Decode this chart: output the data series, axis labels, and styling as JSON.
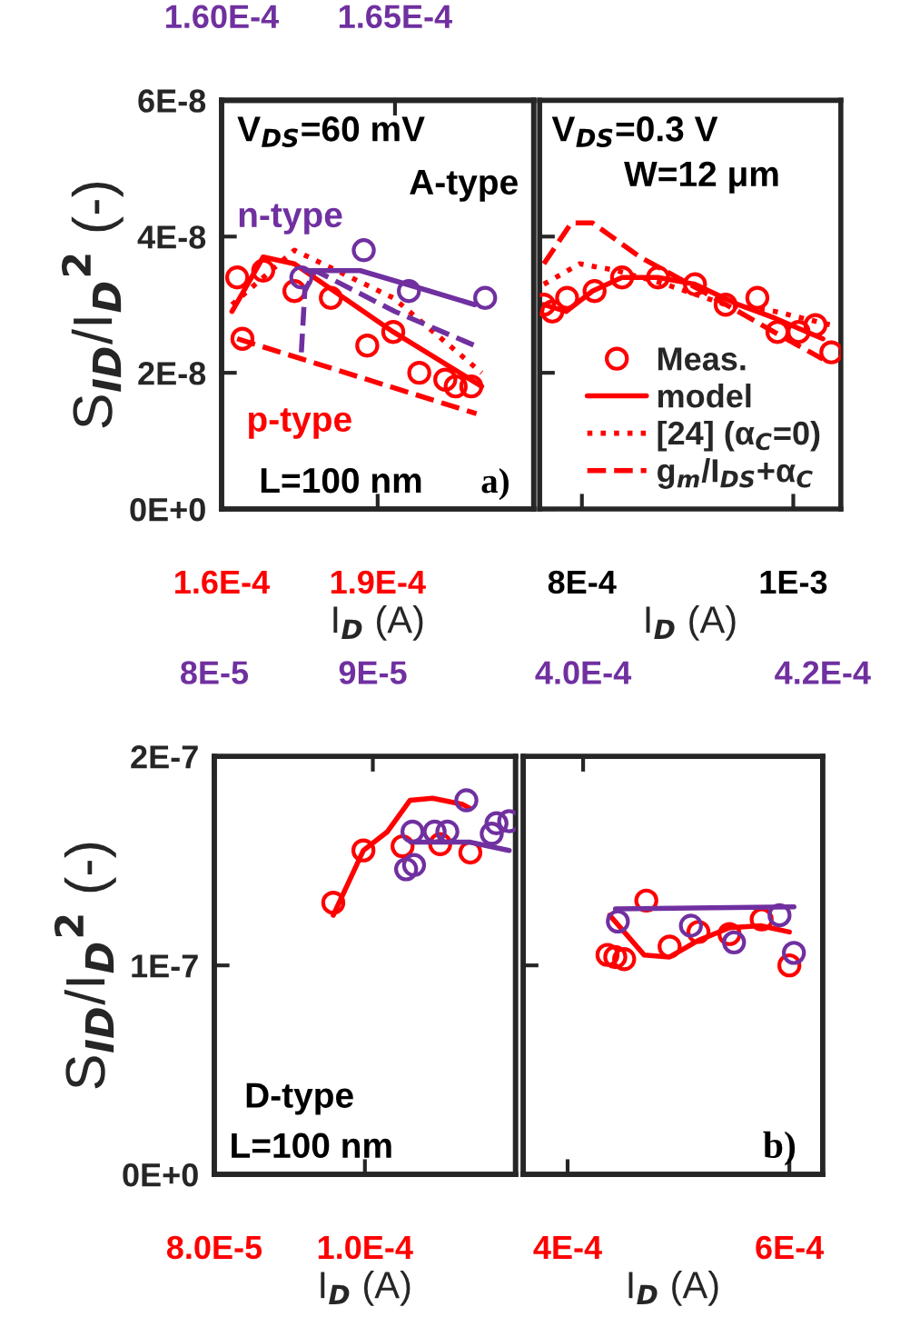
{
  "chart_data": [
    {
      "type": "line",
      "xlabel": "I$_{D}$ (A)",
      "ylabel": "S$_{ID}$/I$_{D}$$^{2}$ (-)",
      "xlim": [
        0.00016,
        0.00022
      ],
      "xticks": [
        {
          "value": 0.00016,
          "label": "1.6E-4"
        },
        {
          "value": 0.00019,
          "label": "1.9E-4"
        }
      ],
      "x2lim": [
        0.00016,
        0.000169
      ],
      "x2ticks": [
        {
          "value": 0.00016,
          "label": "1.60E-4"
        },
        {
          "value": 0.000165,
          "label": "1.65E-4"
        }
      ],
      "ylim": [
        0,
        6e-08
      ],
      "yticks": [
        {
          "value": 0,
          "label": "0E+0"
        },
        {
          "value": 2e-08,
          "label": "2E-8"
        },
        {
          "value": 4e-08,
          "label": "4E-8"
        },
        {
          "value": 6e-08,
          "label": "6E-8"
        }
      ],
      "annotations": [
        "V$_{DS}$=60 mV",
        "A-type",
        "n-type",
        "p-type",
        "L=100 nm",
        "a)"
      ],
      "series": [
        {
          "type": "line",
          "line_style": "solid",
          "color": "#ff0000",
          "x": [
            0.000162,
            0.000168,
            0.000174,
            0.000193,
            0.00021
          ],
          "values": [
            2.9e-08,
            3.7e-08,
            3.6e-08,
            2.6e-08,
            1.8e-08
          ]
        },
        {
          "type": "line",
          "line_style": "dotted",
          "color": "#ff0000",
          "x": [
            0.000162,
            0.000174,
            0.000193,
            0.00021
          ],
          "values": [
            3e-08,
            3.8e-08,
            3.1e-08,
            2e-08
          ]
        },
        {
          "type": "line",
          "line_style": "dashed",
          "color": "#ff0000",
          "x": [
            0.000163,
            0.000209
          ],
          "values": [
            2.5e-08,
            1.4e-08
          ]
        },
        {
          "type": "scatter",
          "marker": "circle",
          "color": "#ff0000",
          "x": [
            0.000163,
            0.000164,
            0.000168,
            0.000174,
            0.000181,
            0.000188,
            0.000193,
            0.000198,
            0.000203,
            0.000205,
            0.000208
          ],
          "values": [
            3.4e-08,
            2.5e-08,
            3.5e-08,
            3.2e-08,
            3.1e-08,
            2.4e-08,
            2.6e-08,
            2e-08,
            1.9e-08,
            1.8e-08,
            1.8e-08
          ]
        },
        {
          "type": "line",
          "line_style": "solid",
          "axis": "x2",
          "color": "#7030a0",
          "x": [
            0.0001624,
            0.000164,
            0.000166,
            0.0001673
          ],
          "values": [
            3.5e-08,
            3.5e-08,
            3.2e-08,
            3e-08
          ]
        },
        {
          "type": "line",
          "line_style": "dashed",
          "axis": "x2",
          "color": "#7030a0",
          "x": [
            0.0001623,
            0.0001624,
            0.0001627,
            0.000165,
            0.0001673
          ],
          "values": [
            2.3e-08,
            3.2e-08,
            3.5e-08,
            2.9e-08,
            2.4e-08
          ]
        },
        {
          "type": "scatter",
          "marker": "circle",
          "axis": "x2",
          "color": "#7030a0",
          "x": [
            0.0001623,
            0.0001641,
            0.0001654,
            0.0001676
          ],
          "values": [
            3.4e-08,
            3.8e-08,
            3.2e-08,
            3.1e-08
          ]
        }
      ]
    },
    {
      "type": "line",
      "xlabel": "I$_{D}$ (A)",
      "tick_labels": "x",
      "legend": "bottom right",
      "xlim": [
        0.00076,
        0.001045
      ],
      "xticks": [
        {
          "value": 0.0008,
          "label": "8E-4"
        },
        {
          "value": 0.001,
          "label": "1E-3"
        }
      ],
      "ylim": [
        0,
        6e-08
      ],
      "yticks": [
        {
          "value": 0,
          "label": null
        },
        {
          "value": 2e-08,
          "label": null
        },
        {
          "value": 4e-08,
          "label": null
        },
        {
          "value": 6e-08,
          "label": null
        }
      ],
      "annotations": [
        "V$_{DS}$=0.3 V",
        "W=12 μm"
      ],
      "series": [
        {
          "type": "scatter",
          "marker": "circle",
          "name": "Meas.",
          "color": "#ff0000",
          "x": [
            0.000764,
            0.000772,
            0.000786,
            0.000812,
            0.000838,
            0.000872,
            0.000907,
            0.000936,
            0.000966,
            0.000985,
            0.001005,
            0.001021,
            0.001036
          ],
          "values": [
            3e-08,
            2.9e-08,
            3.1e-08,
            3.2e-08,
            3.4e-08,
            3.4e-08,
            3.3e-08,
            3e-08,
            3.1e-08,
            2.6e-08,
            2.6e-08,
            2.7e-08,
            2.3e-08
          ]
        },
        {
          "type": "line",
          "line_style": "solid",
          "name": "model",
          "color": "#ff0000",
          "x": [
            0.000764,
            0.000785,
            0.00081,
            0.000838,
            0.000872,
            0.000907,
            0.000948,
            0.000983,
            0.001028
          ],
          "values": [
            3e-08,
            2.9e-08,
            3.2e-08,
            3.4e-08,
            3.4e-08,
            3.3e-08,
            3e-08,
            2.8e-08,
            2.5e-08
          ]
        },
        {
          "type": "line",
          "line_style": "dotted",
          "name": "[24] (α$_{C}$=0)",
          "color": "#ff0000",
          "x": [
            0.000764,
            0.000798,
            0.000833,
            0.000879,
            0.000936,
            0.000983,
            0.001036
          ],
          "values": [
            3.3e-08,
            3.6e-08,
            3.5e-08,
            3.3e-08,
            3e-08,
            2.9e-08,
            2.7e-08
          ]
        },
        {
          "type": "line",
          "line_style": "dashed",
          "name": "g$_{m}$/I$_{DS}$+α$_{C}$",
          "color": "#ff0000",
          "x": [
            0.000764,
            0.00079,
            0.00081,
            0.000855,
            0.000902,
            0.000948,
            0.000993,
            0.001028
          ],
          "values": [
            3.6e-08,
            4.2e-08,
            4.2e-08,
            3.7e-08,
            3.3e-08,
            2.9e-08,
            2.5e-08,
            2.2e-08
          ]
        }
      ]
    },
    {
      "type": "line",
      "xlabel": "I$_{D}$ (A)",
      "ylabel": "S$_{ID}$/I$_{D}$$^{2}$ (-)",
      "xlim": [
        8e-05,
        0.00012
      ],
      "xticks": [
        {
          "value": 8e-05,
          "label": "8.0E-5"
        },
        {
          "value": 0.0001,
          "label": "1.0E-4"
        }
      ],
      "x2lim": [
        8e-05,
        9.9e-05
      ],
      "x2ticks": [
        {
          "value": 8e-05,
          "label": "8E-5"
        },
        {
          "value": 9e-05,
          "label": "9E-5"
        }
      ],
      "ylim": [
        0,
        2e-07
      ],
      "yticks": [
        {
          "value": 0,
          "label": "0E+0"
        },
        {
          "value": 1e-07,
          "label": "1E-7"
        },
        {
          "value": 2e-07,
          "label": "2E-7"
        }
      ],
      "annotations": [
        "D-type",
        "L=100 nm"
      ],
      "series": [
        {
          "type": "line",
          "line_style": "solid",
          "color": "#ff0000",
          "x": [
            9.58e-05,
            9.98e-05,
            0.000103,
            0.000106,
            0.000109,
            0.000113,
            0.000114
          ],
          "values": [
            1.24e-07,
            1.55e-07,
            1.64e-07,
            1.79e-07,
            1.8e-07,
            1.77e-07,
            1.75e-07
          ]
        },
        {
          "type": "scatter",
          "marker": "circle",
          "color": "#ff0000",
          "x": [
            9.58e-05,
            9.98e-05,
            0.000105,
            0.00011,
            0.000114
          ],
          "values": [
            1.3e-07,
            1.55e-07,
            1.57e-07,
            1.58e-07,
            1.54e-07
          ]
        },
        {
          "type": "line",
          "line_style": "solid",
          "axis": "x2",
          "color": "#7030a0",
          "x": [
            9.24e-05,
            9.61e-05,
            9.86e-05
          ],
          "values": [
            1.59e-07,
            1.59e-07,
            1.55e-07
          ]
        },
        {
          "type": "scatter",
          "marker": "circle",
          "axis": "x2",
          "color": "#7030a0",
          "x": [
            9.21e-05,
            9.26e-05,
            9.25e-05,
            9.39e-05,
            9.47e-05,
            9.59e-05,
            9.75e-05,
            9.78e-05,
            9.86e-05
          ],
          "values": [
            1.46e-07,
            1.48e-07,
            1.64e-07,
            1.64e-07,
            1.64e-07,
            1.79e-07,
            1.63e-07,
            1.68e-07,
            1.69e-07
          ]
        }
      ]
    },
    {
      "type": "line",
      "xlabel": "I$_{D}$ (A)",
      "tick_labels": "x",
      "xlim": [
        0.00036,
        0.00063
      ],
      "xticks": [
        {
          "value": 0.0004,
          "label": "4E-4"
        },
        {
          "value": 0.0006,
          "label": "6E-4"
        }
      ],
      "x2lim": [
        0.000395,
        0.00042
      ],
      "x2ticks": [
        {
          "value": 0.0004,
          "label": "4.0E-4"
        },
        {
          "value": 0.00042,
          "label": "4.2E-4"
        }
      ],
      "ylim": [
        0,
        2e-07
      ],
      "yticks": [
        {
          "value": 0,
          "label": null
        },
        {
          "value": 1e-07,
          "label": null
        },
        {
          "value": 2e-07,
          "label": null
        }
      ],
      "annotations": [
        "b)"
      ],
      "series": [
        {
          "type": "line",
          "line_style": "solid",
          "color": "#ff0000",
          "x": [
            0.000438,
            0.000469,
            0.000492,
            0.000518,
            0.000546,
            0.000574,
            0.0006
          ],
          "values": [
            1.24e-07,
            1.05e-07,
            1.04e-07,
            1.12e-07,
            1.18e-07,
            1.19e-07,
            1.16e-07
          ]
        },
        {
          "type": "scatter",
          "marker": "circle",
          "color": "#ff0000",
          "x": [
            0.000436,
            0.000443,
            0.000451,
            0.000471,
            0.000492,
            0.000518,
            0.000546,
            0.000575,
            0.0006
          ],
          "values": [
            1.05e-07,
            1.04e-07,
            1.03e-07,
            1.31e-07,
            1.09e-07,
            1.16e-07,
            1.15e-07,
            1.22e-07,
            1e-07
          ]
        },
        {
          "type": "line",
          "line_style": "solid",
          "axis": "x2",
          "color": "#7030a0",
          "x": [
            0.0004027,
            0.0004176
          ],
          "values": [
            1.27e-07,
            1.28e-07
          ]
        },
        {
          "type": "scatter",
          "marker": "circle",
          "axis": "x2",
          "color": "#7030a0",
          "x": [
            0.0004029,
            0.000409,
            0.0004126,
            0.0004164,
            0.0004176
          ],
          "values": [
            1.21e-07,
            1.19e-07,
            1.11e-07,
            1.24e-07,
            1.06e-07
          ]
        }
      ]
    }
  ]
}
